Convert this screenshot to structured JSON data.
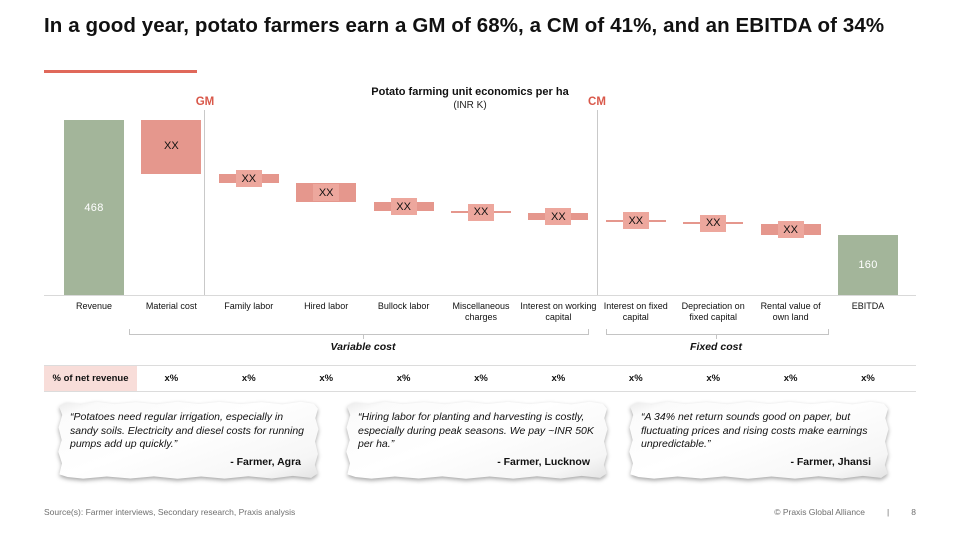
{
  "slide": {
    "title": "In a good year, potato farmers earn a GM of 68%, a CM of 41%, and an EBITDA of 34%",
    "footer_source": "Source(s): Farmer interviews, Secondary research, Praxis analysis",
    "footer_copyright": "© Praxis Global Alliance",
    "footer_divider": "|",
    "page_number": "8"
  },
  "chart_data": {
    "type": "bar",
    "subtype": "waterfall",
    "title": "Potato farming unit economics per ha",
    "subtitle": "(INR K)",
    "gm_label": "GM",
    "cm_label": "CM",
    "values_note": "Cost bar values are masked as XX on the slide; numeric values below are estimated from bar heights (Revenue 468 and EBITDA 160 are shown).",
    "columns": [
      {
        "label": "Revenue",
        "kind": "total",
        "value": 468,
        "display": "468"
      },
      {
        "label": "Material cost",
        "kind": "cost",
        "value": 144,
        "display": "XX"
      },
      {
        "label": "Family labor",
        "kind": "cost",
        "value": 25,
        "display": "XX"
      },
      {
        "label": "Hired labor",
        "kind": "cost",
        "value": 50,
        "display": "XX"
      },
      {
        "label": "Bullock labor",
        "kind": "cost",
        "value": 25,
        "display": "XX"
      },
      {
        "label": "Miscellaneous charges",
        "kind": "cost",
        "value": 6,
        "display": "XX"
      },
      {
        "label": "Interest on working capital",
        "kind": "cost",
        "value": 17,
        "display": "XX"
      },
      {
        "label": "Interest on fixed capital",
        "kind": "cost",
        "value": 6,
        "display": "XX"
      },
      {
        "label": "Depreciation on fixed capital",
        "kind": "cost",
        "value": 6,
        "display": "XX"
      },
      {
        "label": "Rental value of own land",
        "kind": "cost",
        "value": 29,
        "display": "XX"
      },
      {
        "label": "EBITDA",
        "kind": "total",
        "value": 160,
        "display": "160"
      }
    ],
    "colors": {
      "total_bar": "#a3b59a",
      "cost_bar": "#e5978d",
      "cost_chip": "#eda79d",
      "accent_red": "#d9584a"
    }
  },
  "groups": {
    "variable": "Variable cost",
    "fixed": "Fixed cost"
  },
  "pct_row": {
    "label": "% of net revenue",
    "values": [
      "x%",
      "x%",
      "x%",
      "x%",
      "x%",
      "x%",
      "x%",
      "x%",
      "x%",
      "x%"
    ]
  },
  "quotes": [
    {
      "text": "“Potatoes need regular irrigation, especially in sandy soils. Electricity and diesel costs for running pumps add up quickly.”",
      "attribution": "- Farmer, Agra"
    },
    {
      "text": "“Hiring labor for planting and harvesting is costly, especially during peak seasons. We pay ~INR 50K per ha.”",
      "attribution": "- Farmer, Lucknow"
    },
    {
      "text": "“A 34% net return sounds good on paper, but fluctuating prices and rising costs make earnings unpredictable.”",
      "attribution": "- Farmer, Jhansi"
    }
  ]
}
